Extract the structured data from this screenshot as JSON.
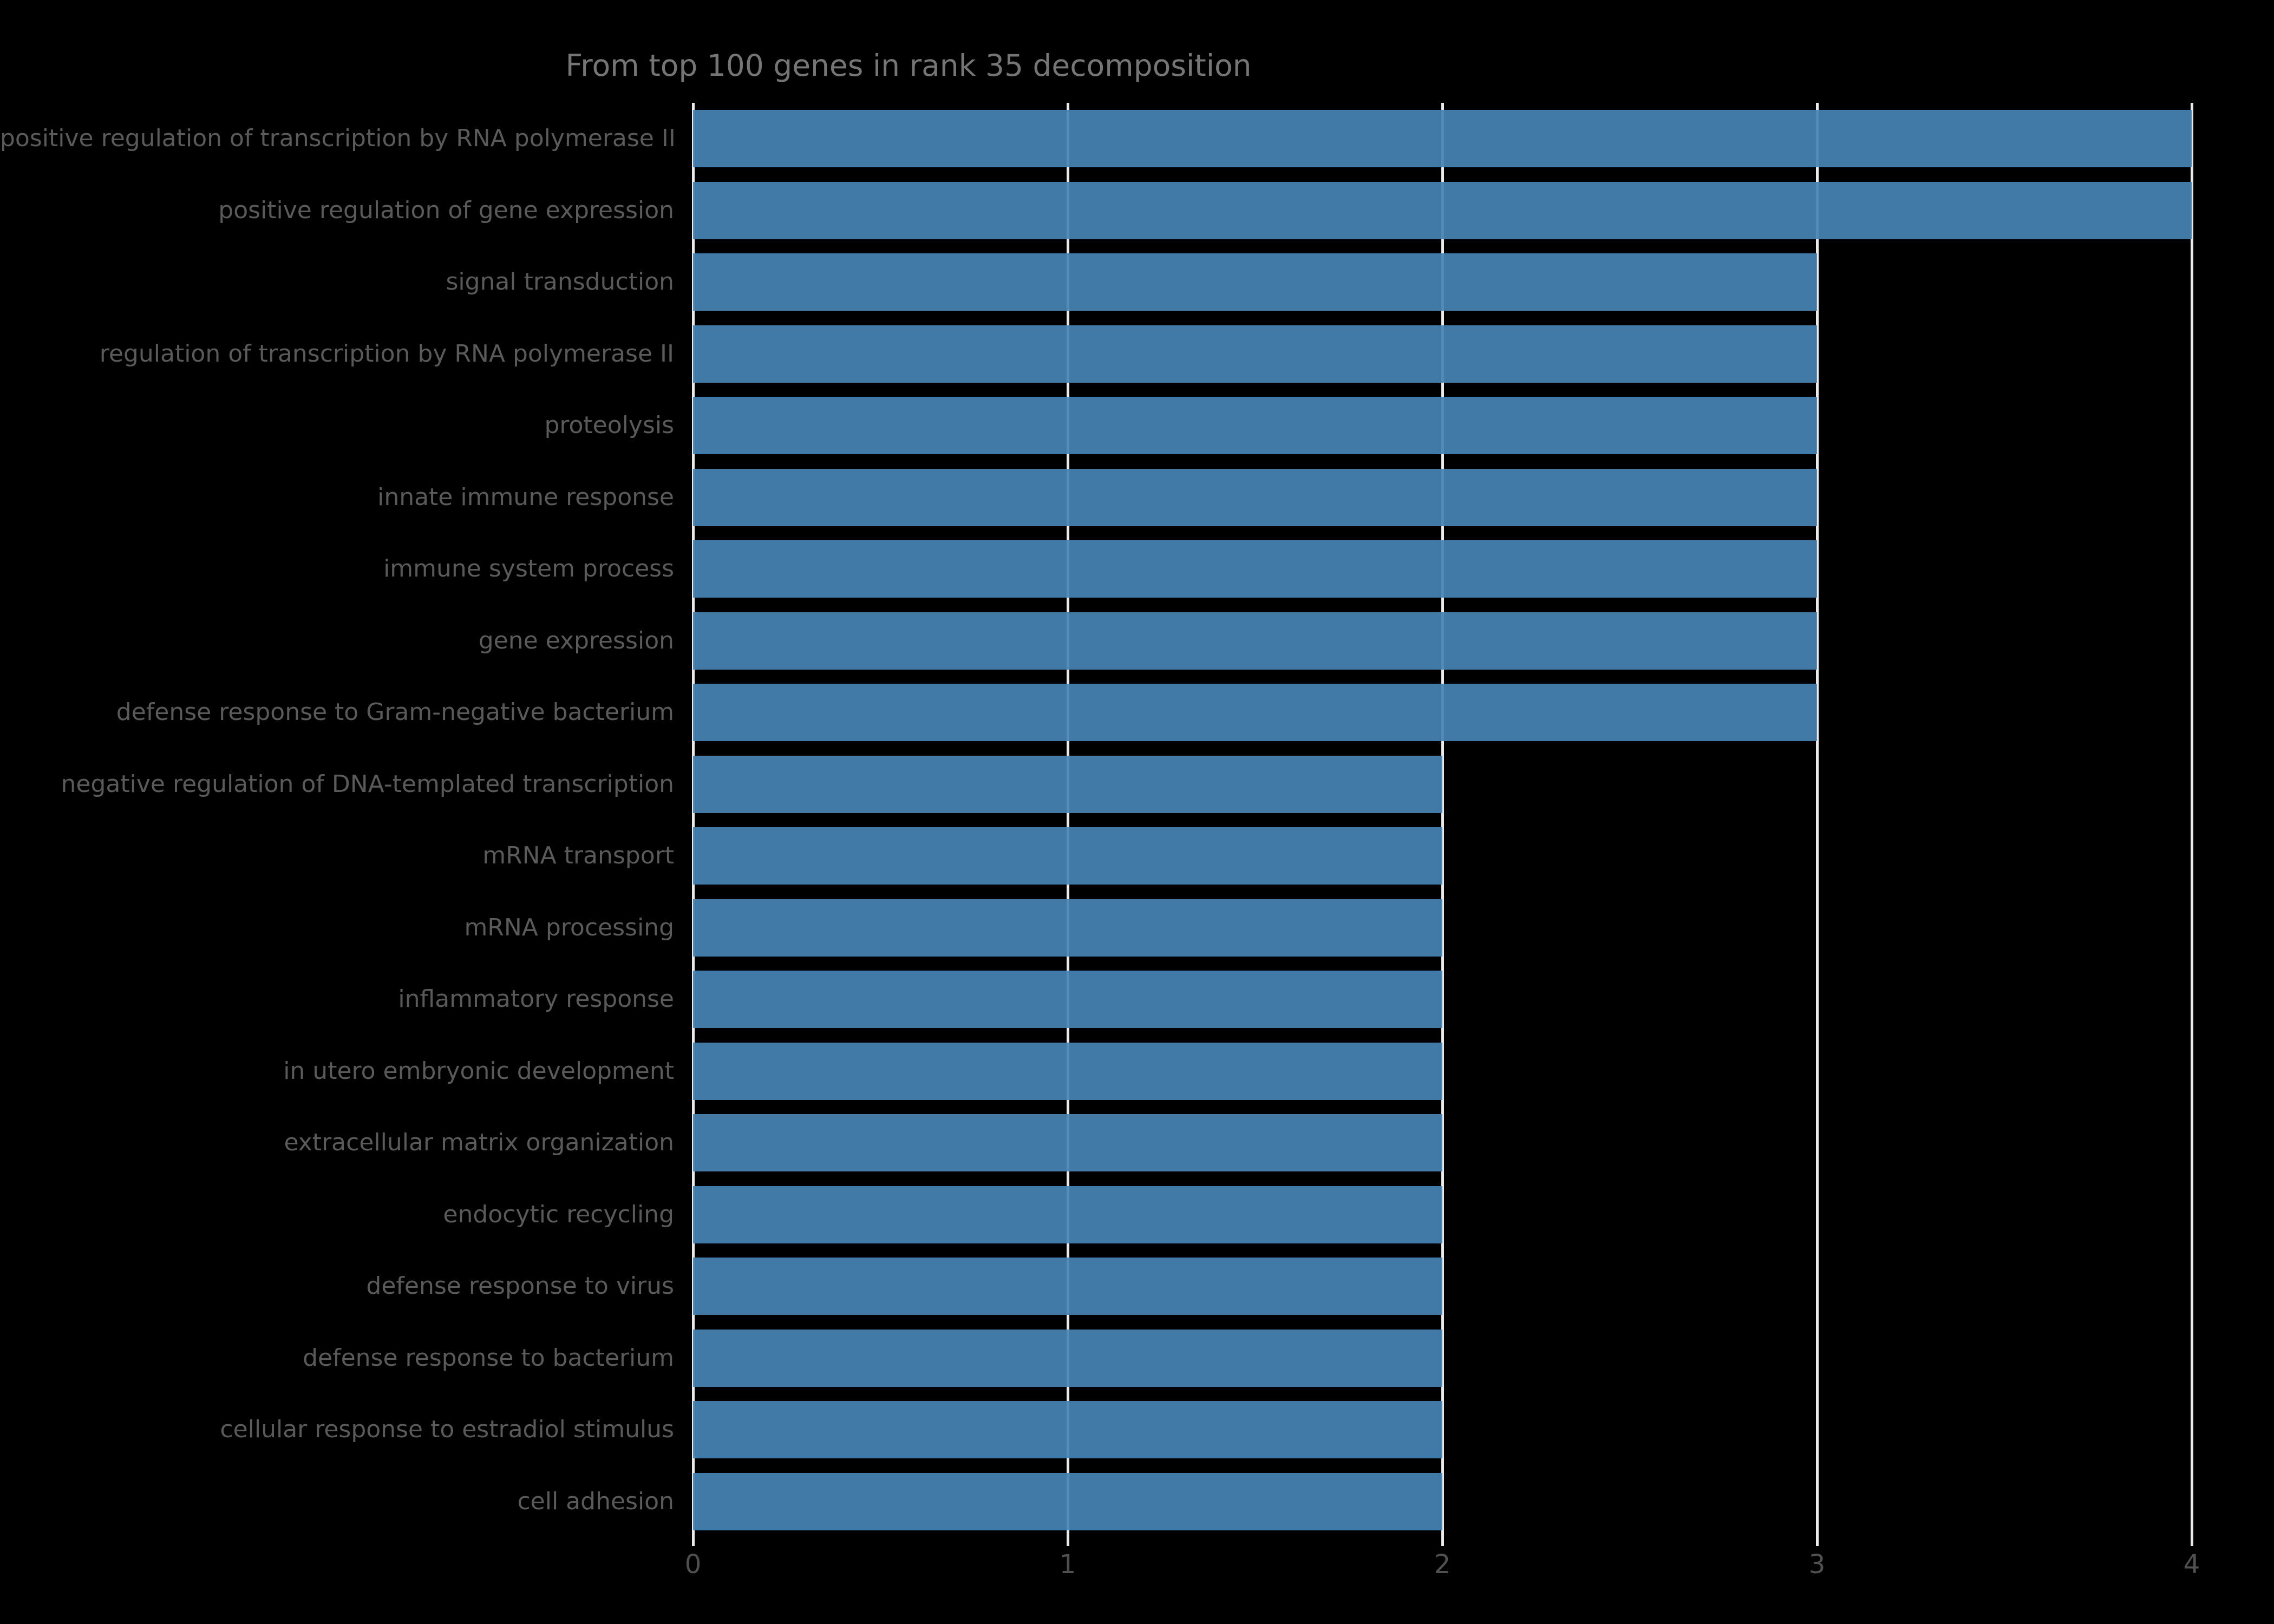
{
  "chart_data": {
    "type": "bar",
    "orientation": "horizontal",
    "title": "From top 100 genes in rank 35 decomposition",
    "categories": [
      "positive regulation of transcription by RNA polymerase II",
      "positive regulation of gene expression",
      "signal transduction",
      "regulation of transcription by RNA polymerase II",
      "proteolysis",
      "innate immune response",
      "immune system process",
      "gene expression",
      "defense response to Gram-negative bacterium",
      "negative regulation of DNA-templated transcription",
      "mRNA transport",
      "mRNA processing",
      "inflammatory response",
      "in utero embryonic development",
      "extracellular matrix organization",
      "endocytic recycling",
      "defense response to virus",
      "defense response to bacterium",
      "cellular response to estradiol stimulus",
      "cell adhesion"
    ],
    "values": [
      4,
      4,
      3,
      3,
      3,
      3,
      3,
      3,
      3,
      2,
      2,
      2,
      2,
      2,
      2,
      2,
      2,
      2,
      2,
      2
    ],
    "xlabel": "",
    "ylabel": "",
    "xlim": [
      0,
      4
    ],
    "xticks": [
      "0",
      "1",
      "2",
      "3",
      "4"
    ],
    "grid": true,
    "legend": null,
    "colors": {
      "background": "#000000",
      "bar": "#4682b4",
      "gridline": "#ebebeb",
      "title_text": "#757575",
      "category_text": "#5a5a5a",
      "tick_text": "#505050"
    }
  }
}
